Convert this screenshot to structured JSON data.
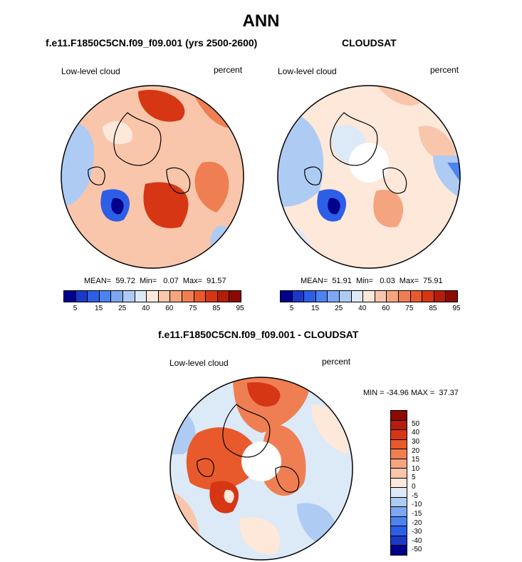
{
  "figure": {
    "title": "ANN",
    "panel1": {
      "title": "f.e11.F1850C5CN.f09_f09.001 (yrs 2500-2600)",
      "left_label": "Low-level cloud",
      "right_label": "percent",
      "stats": "MEAN=  59.72  Min=   0.07  Max=  91.57"
    },
    "panel2": {
      "title": "CLOUDSAT",
      "left_label": "Low-level cloud",
      "right_label": "percent",
      "stats": "MEAN=  51.91  Min=   0.03  Max=  75.91"
    },
    "panel3": {
      "title": "f.e11.F1850C5CN.f09_f09.001 - CLOUDSAT",
      "left_label": "Low-level cloud",
      "right_label": "percent",
      "stats": "MIN = -34.96 MAX =  37.37"
    }
  },
  "colorbar_abs": {
    "colors": [
      "#00008c",
      "#1b38c8",
      "#2d5fe6",
      "#4c83f0",
      "#7fa6f2",
      "#aecbf4",
      "#dce9f7",
      "#fde8da",
      "#f9c6ab",
      "#f4a47e",
      "#ef7f53",
      "#e85a2c",
      "#d63614",
      "#b51d0b",
      "#8c0a04"
    ],
    "tick_labels": [
      "5",
      "15",
      "25",
      "40",
      "60",
      "75",
      "85",
      "95"
    ]
  },
  "colorbar_diff": {
    "colors": [
      "#00008c",
      "#1b38c8",
      "#2d5fe6",
      "#4c83f0",
      "#7fa6f2",
      "#aecbf4",
      "#dce9f7",
      "#fde8da",
      "#f9c6ab",
      "#f4a47e",
      "#ef7f53",
      "#e85a2c",
      "#d63614",
      "#b51d0b",
      "#8c0a04"
    ],
    "tick_labels": [
      "50",
      "40",
      "30",
      "20",
      "15",
      "10",
      "5",
      "0",
      "-5",
      "-10",
      "-15",
      "-20",
      "-30",
      "-40",
      "-50"
    ]
  },
  "map_palette": {
    "ocean_light": "#f9d0b8",
    "warm": "#ef7f53",
    "hot": "#d63614",
    "cool": "#aecbf4",
    "cold": "#2d5fe6",
    "deep": "#00008c",
    "missing": "#ffffff"
  }
}
